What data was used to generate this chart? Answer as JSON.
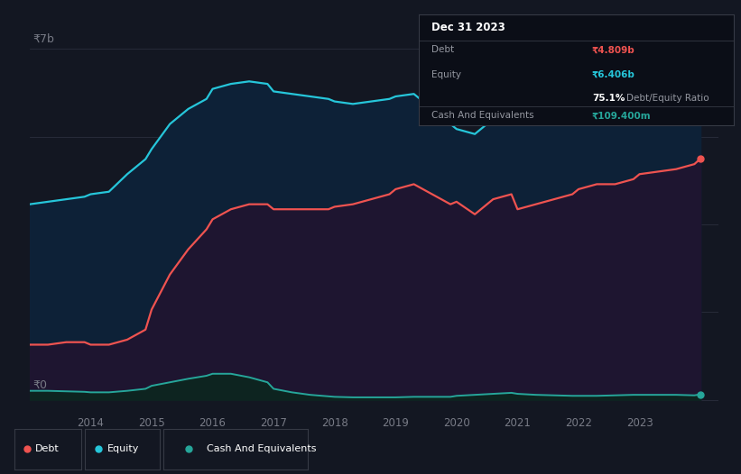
{
  "background_color": "#131722",
  "plot_bg_color": "#131722",
  "title": "Dec 31 2023",
  "y_label_top": "₹7b",
  "y_label_bottom": "₹0",
  "years": [
    2013.0,
    2013.3,
    2013.6,
    2013.9,
    2014.0,
    2014.3,
    2014.6,
    2014.9,
    2015.0,
    2015.3,
    2015.6,
    2015.9,
    2016.0,
    2016.3,
    2016.6,
    2016.9,
    2017.0,
    2017.3,
    2017.6,
    2017.9,
    2018.0,
    2018.3,
    2018.6,
    2018.9,
    2019.0,
    2019.3,
    2019.6,
    2019.9,
    2020.0,
    2020.3,
    2020.6,
    2020.9,
    2021.0,
    2021.3,
    2021.6,
    2021.9,
    2022.0,
    2022.3,
    2022.6,
    2022.9,
    2023.0,
    2023.3,
    2023.6,
    2023.9,
    2024.0
  ],
  "equity": [
    3.9,
    3.95,
    4.0,
    4.05,
    4.1,
    4.15,
    4.5,
    4.8,
    5.0,
    5.5,
    5.8,
    6.0,
    6.2,
    6.3,
    6.35,
    6.3,
    6.15,
    6.1,
    6.05,
    6.0,
    5.95,
    5.9,
    5.95,
    6.0,
    6.05,
    6.1,
    5.8,
    5.5,
    5.4,
    5.3,
    5.6,
    5.7,
    5.5,
    5.6,
    5.65,
    5.8,
    5.9,
    5.95,
    6.0,
    6.1,
    6.15,
    6.2,
    6.3,
    6.55,
    6.7
  ],
  "debt": [
    1.1,
    1.1,
    1.15,
    1.15,
    1.1,
    1.1,
    1.2,
    1.4,
    1.8,
    2.5,
    3.0,
    3.4,
    3.6,
    3.8,
    3.9,
    3.9,
    3.8,
    3.8,
    3.8,
    3.8,
    3.85,
    3.9,
    4.0,
    4.1,
    4.2,
    4.3,
    4.1,
    3.9,
    3.95,
    3.7,
    4.0,
    4.1,
    3.8,
    3.9,
    4.0,
    4.1,
    4.2,
    4.3,
    4.3,
    4.4,
    4.5,
    4.55,
    4.6,
    4.7,
    4.809
  ],
  "cash": [
    0.18,
    0.18,
    0.17,
    0.16,
    0.15,
    0.15,
    0.18,
    0.22,
    0.28,
    0.35,
    0.42,
    0.48,
    0.52,
    0.52,
    0.45,
    0.35,
    0.22,
    0.15,
    0.1,
    0.07,
    0.06,
    0.05,
    0.05,
    0.05,
    0.05,
    0.06,
    0.06,
    0.06,
    0.08,
    0.1,
    0.12,
    0.14,
    0.12,
    0.1,
    0.09,
    0.08,
    0.08,
    0.08,
    0.09,
    0.1,
    0.1,
    0.1,
    0.1,
    0.09,
    0.1094
  ],
  "equity_color": "#26c6da",
  "debt_color": "#ef5350",
  "cash_color": "#26a69a",
  "grid_color": "#2a2e3d",
  "text_color": "#787b86",
  "tooltip_bg": "#131722",
  "tooltip_border": "#363a45",
  "debt_tooltip_color": "#ef5350",
  "equity_tooltip_color": "#26c6da",
  "cash_tooltip_color": "#26a69a",
  "xlim": [
    2013.0,
    2024.3
  ],
  "ylim": [
    -0.25,
    7.5
  ],
  "xtick_labels": [
    "2014",
    "2015",
    "2016",
    "2017",
    "2018",
    "2019",
    "2020",
    "2021",
    "2022",
    "2023"
  ],
  "xtick_positions": [
    2014,
    2015,
    2016,
    2017,
    2018,
    2019,
    2020,
    2021,
    2022,
    2023
  ],
  "legend_items": [
    "Debt",
    "Equity",
    "Cash And Equivalents"
  ],
  "legend_colors": [
    "#ef5350",
    "#26c6da",
    "#26a69a"
  ]
}
